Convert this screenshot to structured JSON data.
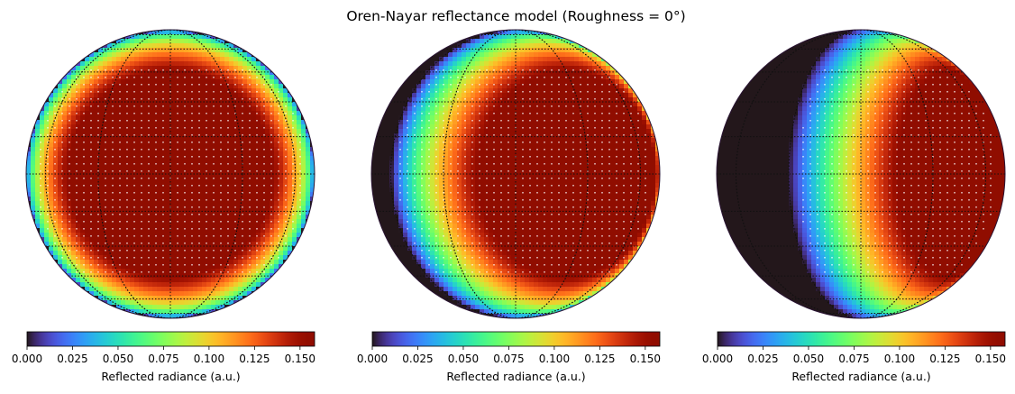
{
  "title": "Oren-Nayar reflectance model (Roughness = 0°)",
  "chart_data": [
    {
      "type": "heatmap",
      "projection": "orthographic sphere",
      "quantity": "Reflected radiance (a.u.)",
      "colormap": "turbo",
      "range": [
        0.0,
        0.158
      ],
      "light_offset_deg": 0,
      "max_value": 0.158,
      "colorbar": {
        "label": "Reflected radiance (a.u.)",
        "ticks": [
          "0.000",
          "0.025",
          "0.050",
          "0.075",
          "0.100",
          "0.125",
          "0.150"
        ]
      }
    },
    {
      "type": "heatmap",
      "projection": "orthographic sphere",
      "quantity": "Reflected radiance (a.u.)",
      "colormap": "turbo",
      "range": [
        0.0,
        0.158
      ],
      "light_offset_deg": 30,
      "max_value": 0.158,
      "colorbar": {
        "label": "Reflected radiance (a.u.)",
        "ticks": [
          "0.000",
          "0.025",
          "0.050",
          "0.075",
          "0.100",
          "0.125",
          "0.150"
        ]
      }
    },
    {
      "type": "heatmap",
      "projection": "orthographic sphere",
      "quantity": "Reflected radiance (a.u.)",
      "colormap": "turbo",
      "range": [
        0.0,
        0.158
      ],
      "light_offset_deg": 60,
      "max_value": 0.158,
      "colorbar": {
        "label": "Reflected radiance (a.u.)",
        "ticks": [
          "0.000",
          "0.025",
          "0.050",
          "0.075",
          "0.100",
          "0.125",
          "0.150"
        ]
      }
    }
  ]
}
